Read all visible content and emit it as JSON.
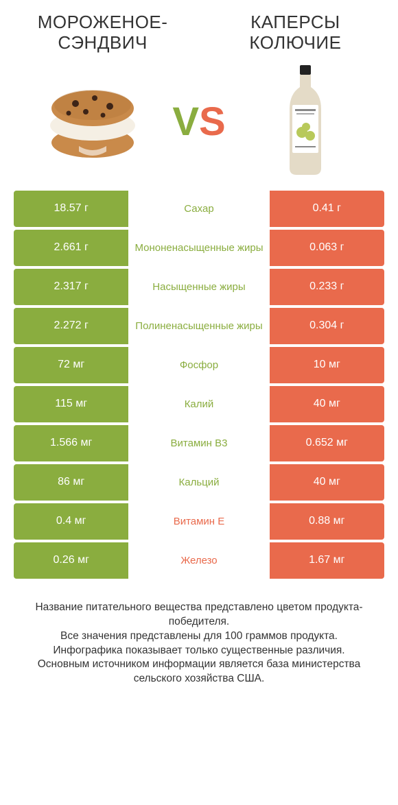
{
  "colors": {
    "left": "#8aad3f",
    "right": "#e96a4c",
    "label_left": "#8aad3f",
    "label_right": "#e96a4c",
    "text_on_bar": "#ffffff",
    "cookie_base": "#c98a4a",
    "cookie_dark": "#a86a2e",
    "cookie_chip": "#3d2417",
    "cookie_cream": "#f5efe4",
    "bottle_cap": "#222222",
    "bottle_body": "#e4dbc7",
    "bottle_label": "#ffffff",
    "bottle_fruit": "#b8c95a"
  },
  "header": {
    "left_title": "МОРОЖЕНОЕ-СЭНДВИЧ",
    "right_title": "КАПЕРСЫ КОЛЮЧИЕ"
  },
  "vs": {
    "v": "V",
    "s": "S"
  },
  "rows": [
    {
      "left": "18.57 г",
      "label": "Сахар",
      "right": "0.41 г",
      "winner": "left"
    },
    {
      "left": "2.661 г",
      "label": "Мононенасыщенные жиры",
      "right": "0.063 г",
      "winner": "left"
    },
    {
      "left": "2.317 г",
      "label": "Насыщенные жиры",
      "right": "0.233 г",
      "winner": "left"
    },
    {
      "left": "2.272 г",
      "label": "Полиненасыщенные жиры",
      "right": "0.304 г",
      "winner": "left"
    },
    {
      "left": "72 мг",
      "label": "Фосфор",
      "right": "10 мг",
      "winner": "left"
    },
    {
      "left": "115 мг",
      "label": "Калий",
      "right": "40 мг",
      "winner": "left"
    },
    {
      "left": "1.566 мг",
      "label": "Витамин B3",
      "right": "0.652 мг",
      "winner": "left"
    },
    {
      "left": "86 мг",
      "label": "Кальций",
      "right": "40 мг",
      "winner": "left"
    },
    {
      "left": "0.4 мг",
      "label": "Витамин E",
      "right": "0.88 мг",
      "winner": "right"
    },
    {
      "left": "0.26 мг",
      "label": "Железо",
      "right": "1.67 мг",
      "winner": "right"
    }
  ],
  "footer": {
    "line1": "Название питательного вещества представлено цветом продукта-победителя.",
    "line2": "Все значения представлены для 100 граммов продукта.",
    "line3": "Инфографика показывает только существенные различия.",
    "line4": "Основным источником информации является база министерства сельского хозяйства США."
  }
}
